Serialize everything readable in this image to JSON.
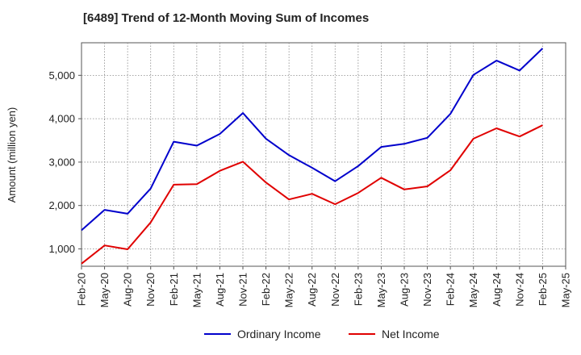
{
  "chart_data": {
    "type": "line",
    "title": "[6489]  Trend of 12-Month Moving Sum of Incomes",
    "xlabel": "",
    "ylabel": "Amount (million yen)",
    "ylim": [
      600,
      5750
    ],
    "yticks": [
      1000,
      2000,
      3000,
      4000,
      5000
    ],
    "ytick_labels": [
      "1,000",
      "2,000",
      "3,000",
      "4,000",
      "5,000"
    ],
    "grid": true,
    "legend_position": "bottom-center",
    "categories": [
      "Feb-20",
      "May-20",
      "Aug-20",
      "Nov-20",
      "Feb-21",
      "May-21",
      "Aug-21",
      "Nov-21",
      "Feb-22",
      "May-22",
      "Aug-22",
      "Nov-22",
      "Feb-23",
      "May-23",
      "Aug-23",
      "Nov-23",
      "Feb-24",
      "May-24",
      "Aug-24",
      "Nov-24",
      "Feb-25",
      "May-25"
    ],
    "series": [
      {
        "name": "Ordinary Income",
        "color": "#0000cc",
        "values": [
          1430,
          1900,
          1810,
          2390,
          3470,
          3380,
          3650,
          4130,
          3540,
          3160,
          2870,
          2560,
          2910,
          3350,
          3420,
          3560,
          4110,
          5010,
          5340,
          5110,
          5620,
          null
        ]
      },
      {
        "name": "Net Income",
        "color": "#e00000",
        "values": [
          660,
          1080,
          990,
          1610,
          2480,
          2490,
          2800,
          3010,
          2530,
          2140,
          2270,
          2030,
          2290,
          2640,
          2370,
          2440,
          2810,
          3540,
          3780,
          3590,
          3850,
          null
        ]
      }
    ]
  }
}
